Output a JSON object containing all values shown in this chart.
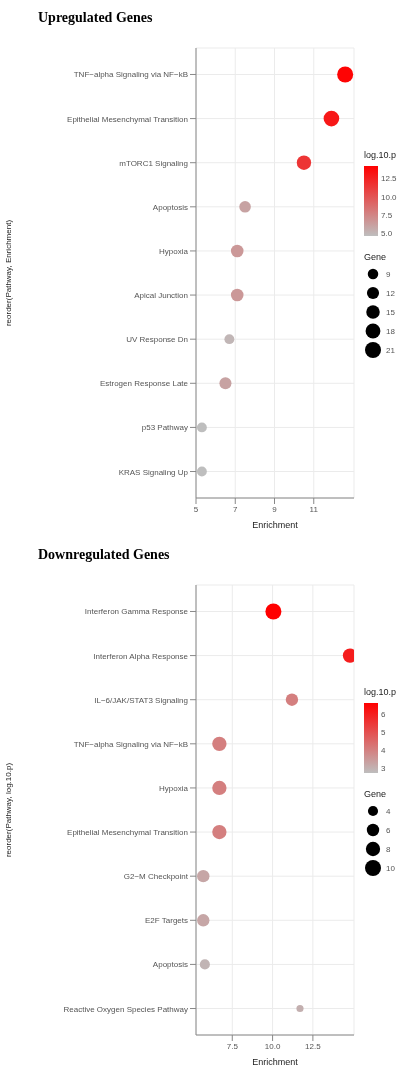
{
  "chart_data": [
    {
      "type": "bubble",
      "orientation": "horizontal",
      "title": "Upregulated Genes",
      "xlabel": "Enrichment",
      "ylabel": "reorder(Pathway, Enrichment)",
      "legend_title": "Gene",
      "clabel": "log.10.p",
      "grid": true,
      "categories": [
        "TNF−alpha Signaling via NF−kB",
        "Epithelial Mesenchymal Transition",
        "mTORC1 Signaling",
        "Apoptosis",
        "Hypoxia",
        "Apical Junction",
        "UV Response Dn",
        "Estrogen Response Late",
        "p53 Pathway",
        "KRAS Signaling Up"
      ],
      "values": [
        12.6,
        11.9,
        10.5,
        7.5,
        7.1,
        7.1,
        6.7,
        6.5,
        5.3,
        5.3
      ],
      "sizes": [
        21,
        20,
        17,
        11,
        13,
        13,
        8,
        12,
        8,
        8
      ],
      "size_legend": [
        9,
        12,
        15,
        18,
        21
      ],
      "cvalues": [
        14,
        13,
        11.5,
        6,
        6.5,
        6.5,
        5,
        6,
        4.6,
        4.6
      ],
      "clim": [
        4.6,
        14.2
      ],
      "cticks": [
        {
          "value": 5,
          "label": "5.0"
        },
        7.5,
        {
          "value": 10,
          "label": "10.0"
        },
        12.5
      ],
      "xlim": [
        5,
        13.05
      ],
      "xticks": [
        5,
        7,
        9,
        11
      ]
    },
    {
      "type": "bubble",
      "orientation": "horizontal",
      "title": "Downregulated Genes",
      "xlabel": "Enrichment",
      "ylabel": "reorder(Pathway, log.10.p)",
      "legend_title": "Gene",
      "clabel": "log.10.p",
      "grid": true,
      "categories": [
        "Interferon Gamma Response",
        "Interferon Alpha Response",
        "IL−6/JAK/STAT3 Signaling",
        "TNF−alpha Signaling via NF−kB",
        "Hypoxia",
        "Epithelial Mesenchymal Transition",
        "G2−M Checkpoint",
        "E2F Targets",
        "Apoptosis",
        "Reactive Oxygen Species Pathway"
      ],
      "values": [
        10.05,
        14.8,
        11.2,
        6.7,
        6.7,
        6.7,
        5.7,
        5.7,
        5.8,
        11.7
      ],
      "sizes": [
        10,
        8,
        6,
        8,
        8,
        8,
        6,
        6,
        4,
        2
      ],
      "size_legend": [
        4,
        6,
        8,
        10
      ],
      "cvalues": [
        6.6,
        6,
        4,
        4,
        4,
        4,
        3.2,
        3.2,
        2.9,
        3
      ],
      "clim": [
        2.7,
        6.6
      ],
      "cticks": [
        3,
        4,
        5,
        6
      ],
      "xlim": [
        5.25,
        15.05
      ],
      "xticks": [
        {
          "value": 7.5,
          "label": "7.5"
        },
        {
          "value": 10,
          "label": "10.0"
        },
        {
          "value": 12.5,
          "label": "12.5"
        }
      ]
    }
  ]
}
